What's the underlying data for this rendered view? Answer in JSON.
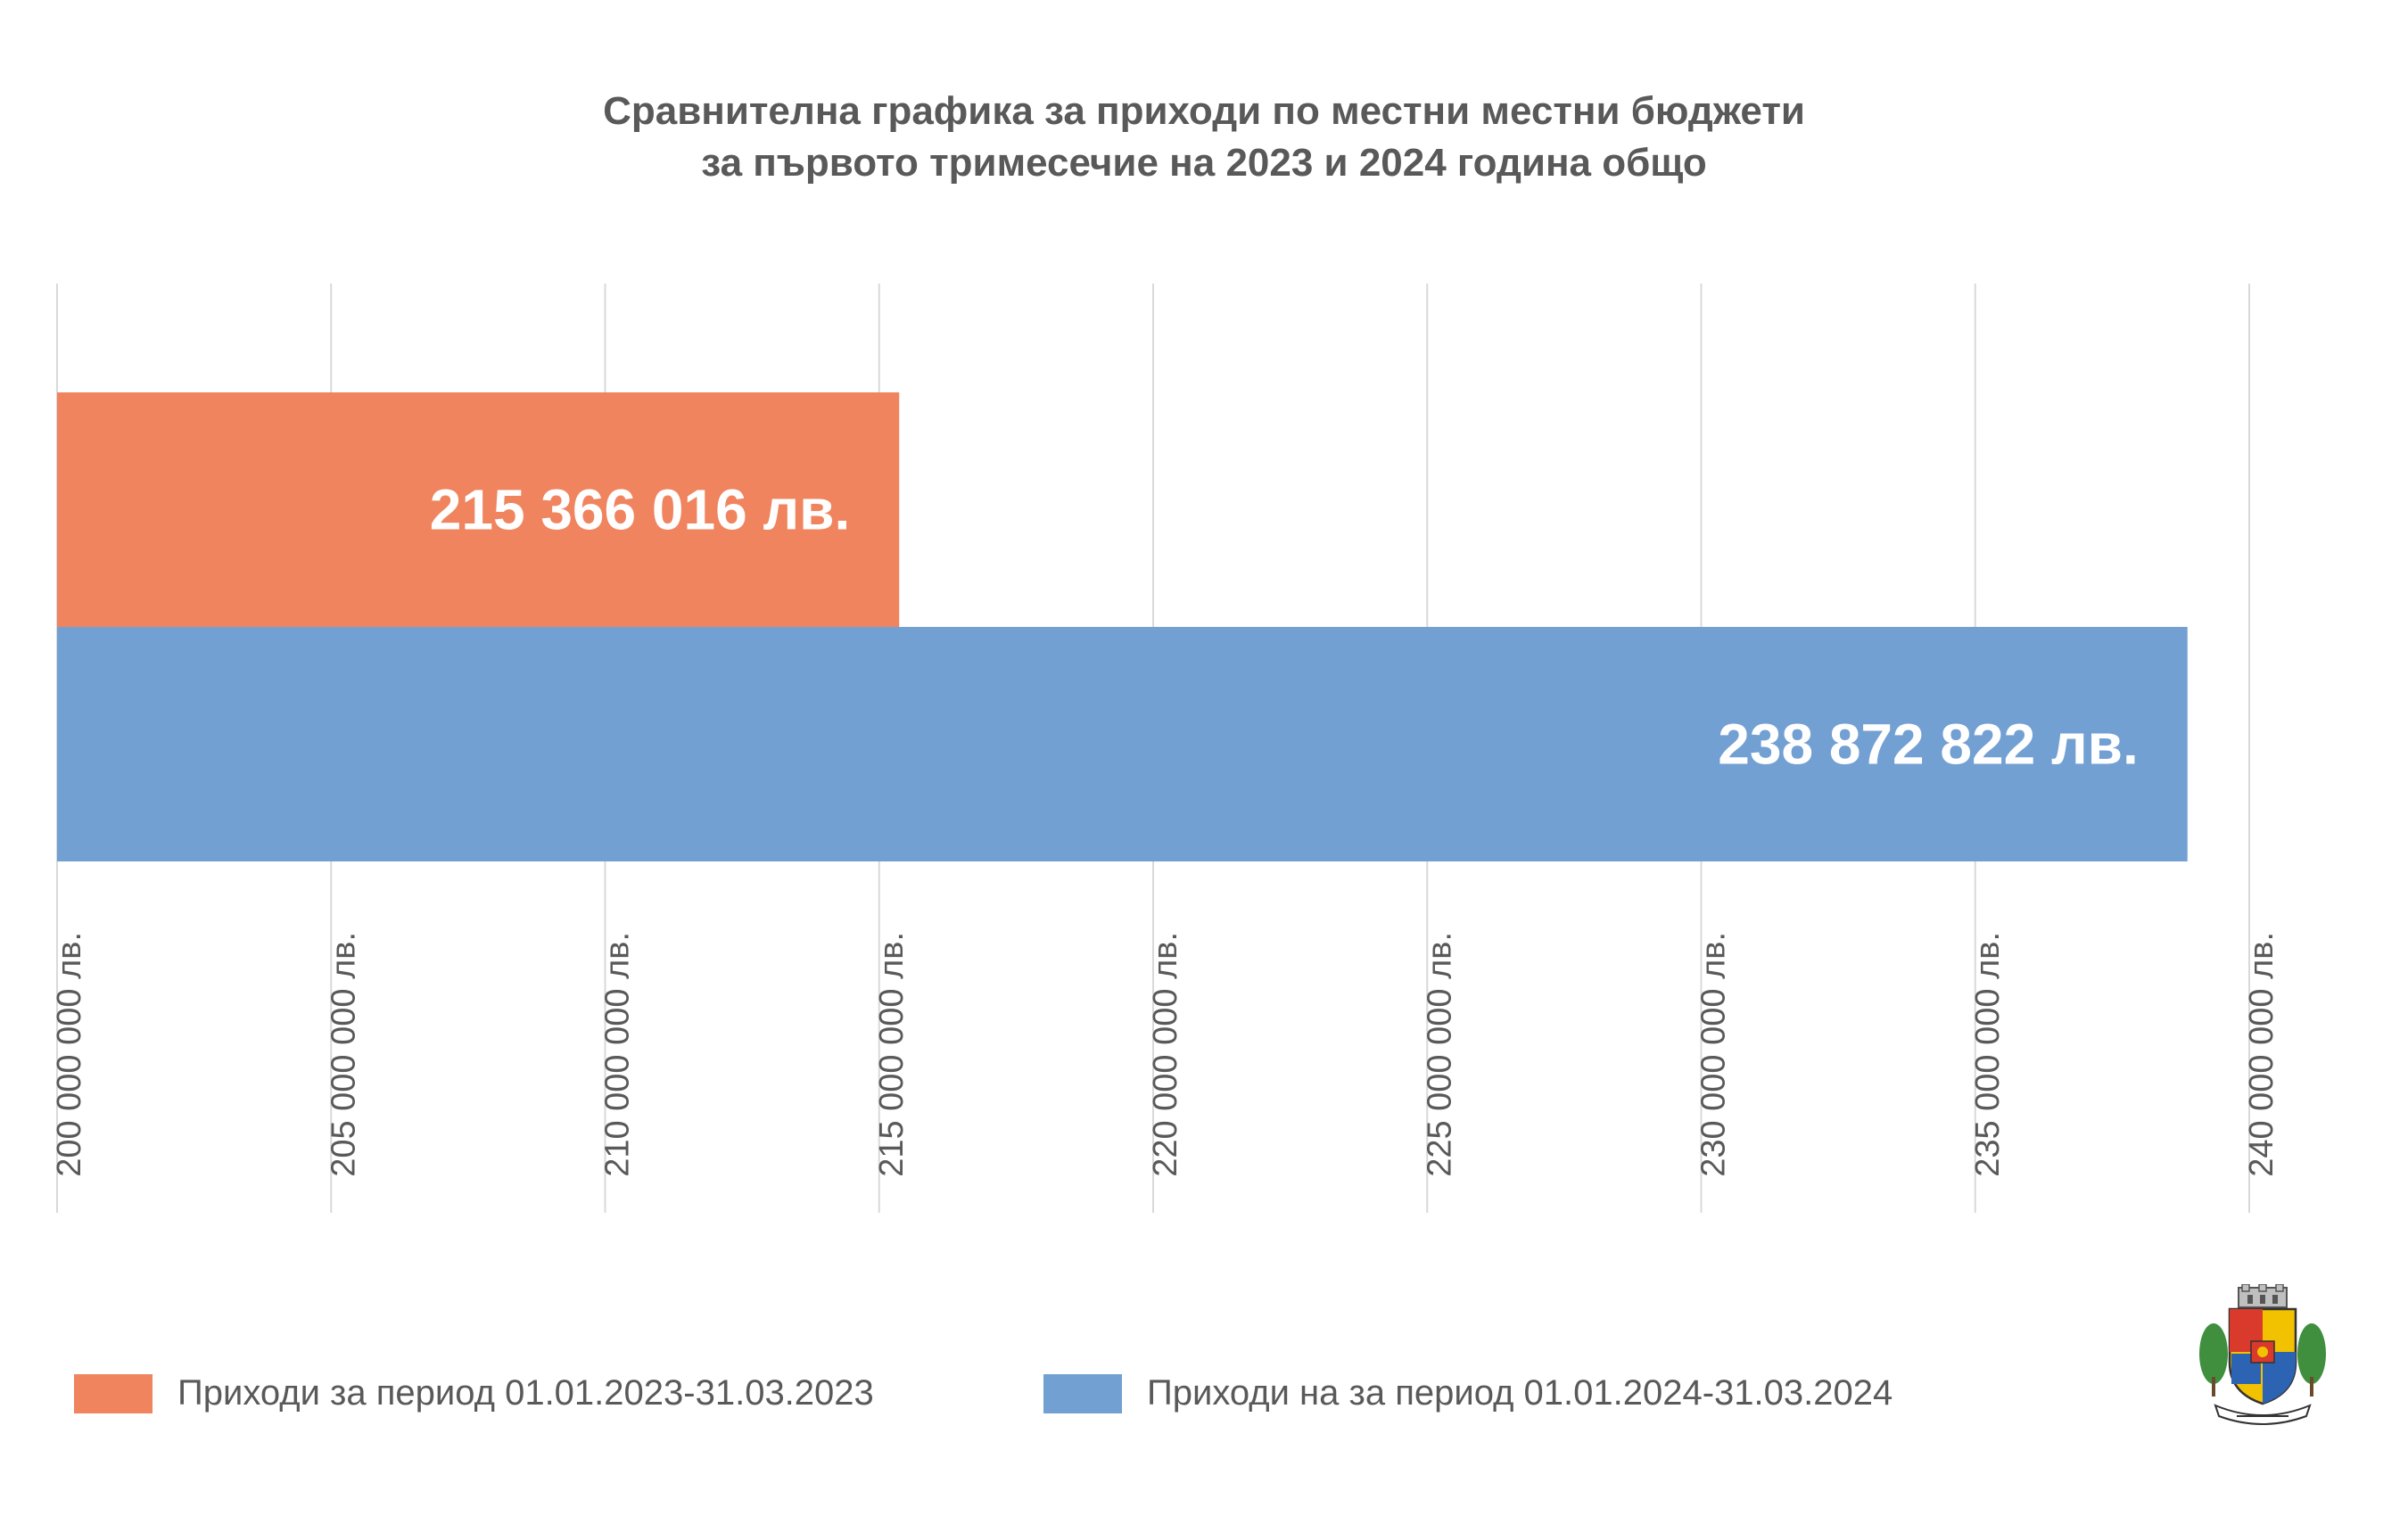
{
  "title": {
    "line1": "Сравнителна графика за приходи по местни местни бюджети",
    "line2": "за първото тримесечие на 2023 и 2024 година общо"
  },
  "chart_data": {
    "type": "bar",
    "orientation": "horizontal",
    "xlim": [
      200000000,
      240000000
    ],
    "ticks": [
      200000000,
      205000000,
      210000000,
      215000000,
      220000000,
      225000000,
      230000000,
      235000000,
      240000000
    ],
    "tick_labels": [
      "200 000 000 лв.",
      "205 000 000 лв.",
      "210 000 000 лв.",
      "215 000 000 лв.",
      "220 000 000 лв.",
      "225 000 000 лв.",
      "230 000 000 лв.",
      "235 000 000 лв.",
      "240 000 000 лв."
    ],
    "grid": "vertical",
    "legend_position": "bottom",
    "series": [
      {
        "name": "Приходи за период 01.01.2023-31.03.2023",
        "value": 215366016,
        "data_label": "215 366 016 лв.",
        "color": "#F0845F"
      },
      {
        "name": "Приходи на за период 01.01.2024-31.03.2024",
        "value": 238872822,
        "data_label": "238 872 822 лв.",
        "color": "#73A0D3"
      }
    ]
  },
  "legend": {
    "items": [
      {
        "label": "Приходи за период 01.01.2023-31.03.2023",
        "color": "#F0845F"
      },
      {
        "label": "Приходи на за период 01.01.2024-31.03.2024",
        "color": "#73A0D3"
      }
    ]
  },
  "logo": {
    "icon": "coat-of-arms-icon"
  }
}
